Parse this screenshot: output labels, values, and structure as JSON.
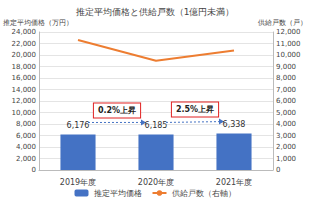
{
  "chart_data": {
    "type": "bar",
    "title": "推定平均価格と供給戸数（1億円未満）",
    "categories": [
      "2019年度",
      "2020年度",
      "2021年度"
    ],
    "series": [
      {
        "name": "推定平均価格",
        "type": "bar",
        "color": "#4472c4",
        "values": [
          6176,
          6185,
          6338
        ],
        "value_labels": [
          "6,176",
          "6,185",
          "6,338"
        ],
        "data_labels": true
      },
      {
        "name": "供給戸数（右軸）",
        "type": "line",
        "color": "#ed7d31",
        "axis": "y2",
        "values": [
          11300,
          9500,
          10400
        ]
      }
    ],
    "y_label": "推定平均価格（万円）",
    "y2_label": "供給戸数（戸）",
    "ylim": [
      0,
      24000
    ],
    "yticks": [
      0,
      {
        "value": 2000,
        "label": "2,000"
      },
      {
        "value": 4000,
        "label": "4,000"
      },
      {
        "value": 6000,
        "label": "6,000"
      },
      {
        "value": 8000,
        "label": "8,000"
      },
      {
        "value": 10000,
        "label": "10,000"
      },
      {
        "value": 12000,
        "label": "12,000"
      },
      {
        "value": 14000,
        "label": "14,000"
      },
      {
        "value": 16000,
        "label": "16,000"
      },
      {
        "value": 18000,
        "label": "18,000"
      },
      {
        "value": 20000,
        "label": "20,000"
      },
      {
        "value": 22000,
        "label": "22,000"
      },
      {
        "value": 24000,
        "label": "24,000"
      }
    ],
    "y2lim": [
      0,
      12000
    ],
    "y2ticks": [
      0,
      {
        "value": 1000,
        "label": "1,000"
      },
      {
        "value": 2000,
        "label": "2,000"
      },
      {
        "value": 3000,
        "label": "3,000"
      },
      {
        "value": 4000,
        "label": "4,000"
      },
      {
        "value": 5000,
        "label": "5,000"
      },
      {
        "value": 6000,
        "label": "6,000"
      },
      {
        "value": 7000,
        "label": "7,000"
      },
      {
        "value": 8000,
        "label": "8,000"
      },
      {
        "value": 9000,
        "label": "9,000"
      },
      {
        "value": 10000,
        "label": "10,000"
      },
      {
        "value": 11000,
        "label": "11,000"
      },
      {
        "value": 12000,
        "label": "12,000"
      }
    ],
    "annotations": [
      "0.2%上昇",
      "2.5%上昇"
    ],
    "grid": true,
    "legend": "bottom"
  }
}
